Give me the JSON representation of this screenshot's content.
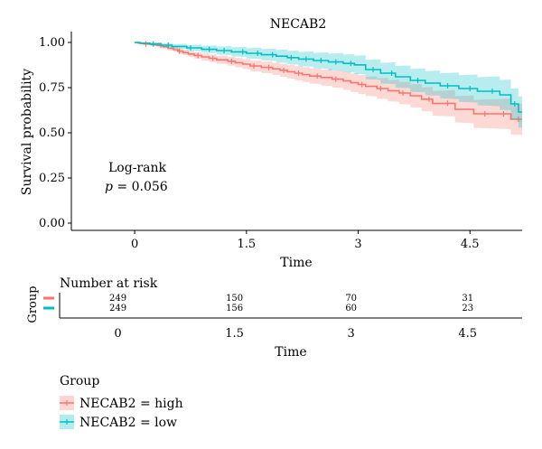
{
  "chart_data": {
    "type": "line",
    "title": "NECAB2",
    "xlabel": "Time",
    "ylabel": "Survival probability",
    "xlim": [
      -0.85,
      5.2
    ],
    "ylim": [
      -0.04,
      1.04
    ],
    "x_ticks": [
      "0",
      "1.5",
      "3",
      "4.5"
    ],
    "x_tick_values": [
      0,
      1.5,
      3,
      4.5
    ],
    "y_ticks": [
      "0.00",
      "0.25",
      "0.50",
      "0.75",
      "1.00"
    ],
    "y_tick_values": [
      0,
      0.25,
      0.5,
      0.75,
      1.0
    ],
    "grid": false,
    "annotation": {
      "line1": "Log-rank",
      "p_symbol": "p",
      "p_text": " = 0.056"
    },
    "series": [
      {
        "name": "NECAB2 = high",
        "color": "#F8766D",
        "band_color": "#F8766D",
        "steps": [
          [
            0,
            1.0
          ],
          [
            0.05,
            0.996
          ],
          [
            0.12,
            0.992
          ],
          [
            0.22,
            0.988
          ],
          [
            0.3,
            0.984
          ],
          [
            0.38,
            0.976
          ],
          [
            0.45,
            0.968
          ],
          [
            0.52,
            0.96
          ],
          [
            0.58,
            0.952
          ],
          [
            0.65,
            0.944
          ],
          [
            0.72,
            0.936
          ],
          [
            0.8,
            0.928
          ],
          [
            0.9,
            0.92
          ],
          [
            1.0,
            0.912
          ],
          [
            1.1,
            0.904
          ],
          [
            1.25,
            0.896
          ],
          [
            1.35,
            0.888
          ],
          [
            1.45,
            0.88
          ],
          [
            1.55,
            0.87
          ],
          [
            1.7,
            0.862
          ],
          [
            1.85,
            0.854
          ],
          [
            1.95,
            0.846
          ],
          [
            2.05,
            0.838
          ],
          [
            2.15,
            0.83
          ],
          [
            2.25,
            0.822
          ],
          [
            2.35,
            0.814
          ],
          [
            2.5,
            0.806
          ],
          [
            2.65,
            0.797
          ],
          [
            2.8,
            0.787
          ],
          [
            2.9,
            0.777
          ],
          [
            3.0,
            0.767
          ],
          [
            3.1,
            0.757
          ],
          [
            3.25,
            0.745
          ],
          [
            3.4,
            0.733
          ],
          [
            3.55,
            0.72
          ],
          [
            3.7,
            0.705
          ],
          [
            3.85,
            0.686
          ],
          [
            4.0,
            0.663
          ],
          [
            4.3,
            0.63
          ],
          [
            4.55,
            0.605
          ],
          [
            5.05,
            0.575
          ]
        ],
        "end_x": 5.2,
        "censor_x": [
          0.15,
          0.35,
          0.6,
          0.85,
          1.05,
          1.3,
          1.6,
          1.8,
          2.0,
          2.2,
          2.45,
          2.7,
          3.05,
          3.3,
          3.6,
          3.95,
          4.2,
          4.7,
          4.95,
          5.15
        ]
      },
      {
        "name": "NECAB2 = low",
        "color": "#00BFC4",
        "band_color": "#00BFC4",
        "steps": [
          [
            0,
            1.0
          ],
          [
            0.08,
            0.996
          ],
          [
            0.2,
            0.992
          ],
          [
            0.35,
            0.985
          ],
          [
            0.5,
            0.978
          ],
          [
            0.7,
            0.97
          ],
          [
            0.9,
            0.962
          ],
          [
            1.1,
            0.955
          ],
          [
            1.3,
            0.948
          ],
          [
            1.5,
            0.94
          ],
          [
            1.7,
            0.932
          ],
          [
            1.9,
            0.924
          ],
          [
            2.05,
            0.916
          ],
          [
            2.2,
            0.908
          ],
          [
            2.4,
            0.9
          ],
          [
            2.6,
            0.892
          ],
          [
            2.8,
            0.884
          ],
          [
            2.95,
            0.876
          ],
          [
            3.1,
            0.85
          ],
          [
            3.3,
            0.83
          ],
          [
            3.5,
            0.81
          ],
          [
            3.7,
            0.79
          ],
          [
            3.9,
            0.775
          ],
          [
            4.1,
            0.76
          ],
          [
            4.35,
            0.745
          ],
          [
            4.6,
            0.73
          ],
          [
            4.9,
            0.71
          ],
          [
            5.05,
            0.66
          ],
          [
            5.15,
            0.615
          ]
        ],
        "end_x": 5.2,
        "censor_x": [
          0.25,
          0.45,
          0.75,
          1.0,
          1.2,
          1.45,
          1.65,
          1.85,
          2.1,
          2.3,
          2.5,
          2.7,
          2.9,
          3.2,
          3.45,
          3.8,
          4.2,
          4.5,
          4.8,
          5.1
        ]
      }
    ]
  },
  "risk_table": {
    "title": "Number at risk",
    "ylabel": "Group",
    "xlabel": "Time",
    "x_ticks": [
      "0",
      "1.5",
      "3",
      "4.5"
    ],
    "x_tick_values": [
      0,
      1.5,
      3,
      4.5
    ],
    "rows": [
      {
        "color": "#F8766D",
        "values": [
          "249",
          "150",
          "70",
          "31"
        ]
      },
      {
        "color": "#00BFC4",
        "values": [
          "249",
          "156",
          "60",
          "23"
        ]
      }
    ]
  },
  "legend": {
    "title": "Group",
    "items": [
      {
        "label": "NECAB2 = high",
        "color": "#F8766D"
      },
      {
        "label": "NECAB2 = low",
        "color": "#00BFC4"
      }
    ]
  }
}
